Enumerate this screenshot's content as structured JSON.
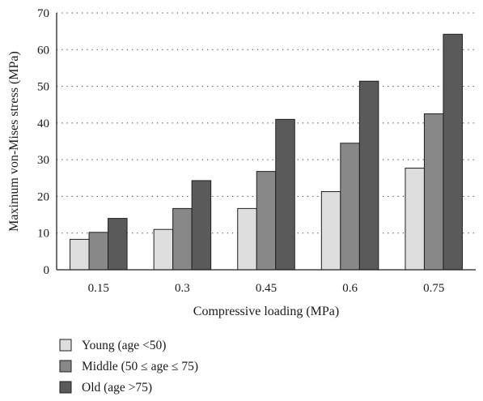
{
  "chart_data": {
    "type": "bar",
    "title": "",
    "xlabel": "Compressive loading (MPa)",
    "ylabel": "Maximum von-Mises stress (MPa)",
    "categories": [
      "0.15",
      "0.3",
      "0.45",
      "0.6",
      "0.75"
    ],
    "ylim": [
      0,
      70
    ],
    "yticks": [
      "0",
      "10",
      "20",
      "30",
      "40",
      "50",
      "60",
      "70"
    ],
    "grid": "horizontal dotted",
    "legend_position": "bottom-left",
    "series": [
      {
        "name": "Young (age <50)",
        "color": "#dedede",
        "values": [
          8.3,
          11.0,
          16.7,
          21.3,
          27.7
        ]
      },
      {
        "name": "Middle (50 ≤ age ≤ 75)",
        "color": "#888888",
        "values": [
          10.2,
          16.7,
          26.8,
          34.5,
          42.5
        ]
      },
      {
        "name": "Old (age >75)",
        "color": "#5a5a5a",
        "values": [
          14.0,
          24.3,
          41.0,
          51.4,
          64.2
        ]
      }
    ]
  }
}
